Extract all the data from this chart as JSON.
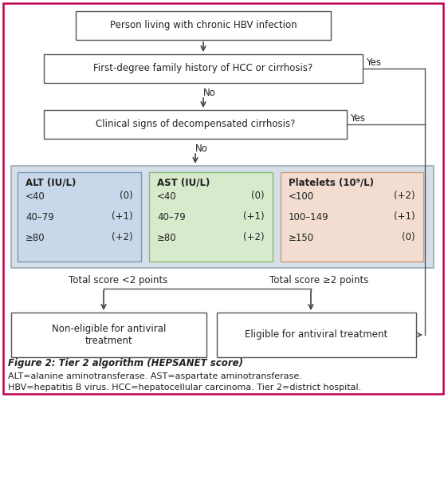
{
  "title": "Figure 2: Tier 2 algorithm (HEPSANET score)",
  "caption_lines": [
    "ALT=alanine aminotransferase. AST=aspartate aminotransferase.",
    "HBV=hepatitis B virus. HCC=hepatocellular carcinoma. Tier 2=district hospital."
  ],
  "outer_border_color": "#c0004e",
  "box_border_color": "#555555",
  "arrow_color": "#444444",
  "score_panel_bg": "#d6dee8",
  "alt_box_bg": "#c8d8ea",
  "ast_box_bg": "#d8eacc",
  "plt_box_bg": "#f2ddd0",
  "text_color": "#222222",
  "rail_color": "#555555",
  "alt_data": {
    "title": "ALT (IU/L)",
    "rows": [
      [
        "<40",
        "(0)"
      ],
      [
        "40–79",
        "(+1)"
      ],
      [
        "≥80",
        "(+2)"
      ]
    ]
  },
  "ast_data": {
    "title": "AST (IU/L)",
    "rows": [
      [
        "<40",
        "(0)"
      ],
      [
        "40–79",
        "(+1)"
      ],
      [
        "≥80",
        "(+2)"
      ]
    ]
  },
  "plt_data": {
    "title": "Platelets (10⁹/L)",
    "rows": [
      [
        "<100",
        "(+2)"
      ],
      [
        "100–149",
        "(+1)"
      ],
      [
        "≥150",
        "(0)"
      ]
    ]
  },
  "label_left": "Total score <2 points",
  "label_right": "Total score ≥2 points"
}
